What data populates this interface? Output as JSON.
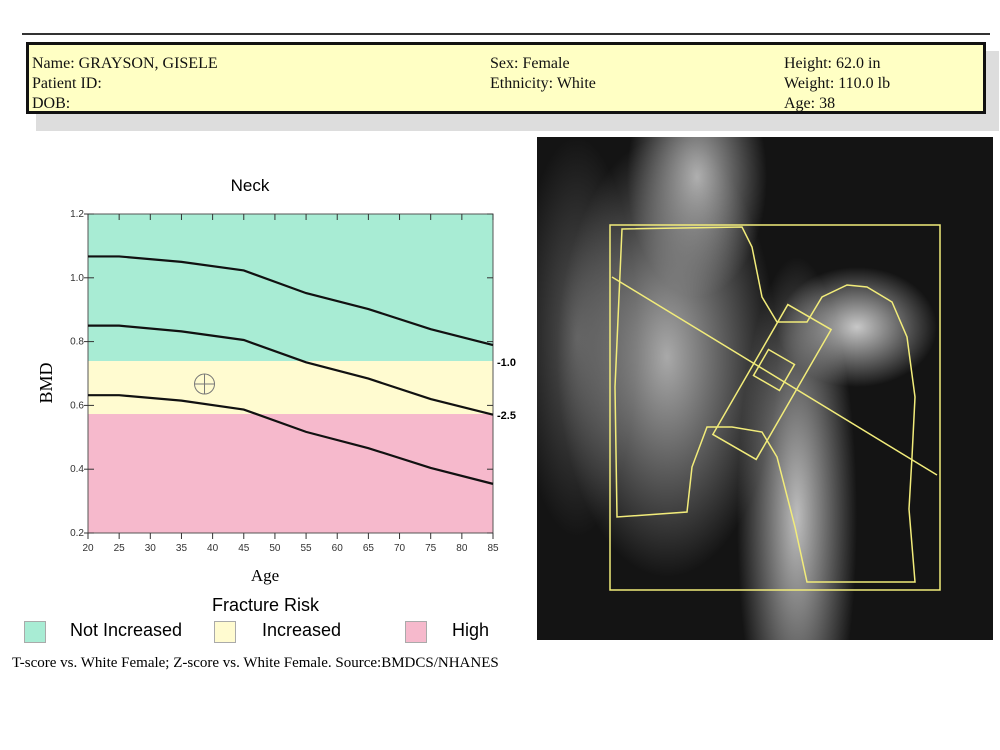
{
  "header": {
    "name": "Name: GRAYSON, GISELE",
    "patient_id": "Patient ID:",
    "dob": "DOB:",
    "sex": "Sex: Female",
    "ethnicity": "Ethnicity: White",
    "height": "Height: 62.0 in",
    "weight": "Weight: 110.0  lb",
    "age": "Age: 38"
  },
  "legend": {
    "title": "Fracture Risk",
    "items": [
      {
        "label": "Not Increased",
        "color": "#a8ecd4"
      },
      {
        "label": "Increased",
        "color": "#fffbd0"
      },
      {
        "label": "High",
        "color": "#f6b9cc"
      }
    ]
  },
  "footer": "T-score vs. White Female; Z-score vs. White Female. Source:BMDCS/NHANES",
  "chart_data": {
    "type": "line",
    "title": "Neck",
    "xlabel": "Age",
    "ylabel": "BMD",
    "xlim": [
      20,
      85
    ],
    "ylim": [
      0.2,
      1.2
    ],
    "xticks": [
      "20",
      "25",
      "30",
      "35",
      "40",
      "45",
      "50",
      "55",
      "60",
      "65",
      "70",
      "75",
      "80",
      "85"
    ],
    "yticks": [
      "0.2",
      "0.4",
      "0.6",
      "0.8",
      "1.0",
      "1.2"
    ],
    "bands": [
      {
        "from": 0.739,
        "to": 1.2,
        "color": "#a8ecd4"
      },
      {
        "from": 0.573,
        "to": 0.739,
        "color": "#fffbd0"
      },
      {
        "from": 0.2,
        "to": 0.573,
        "color": "#f6b9cc"
      }
    ],
    "tscore_labels": [
      {
        "label": "-1.0",
        "bmd": 0.739
      },
      {
        "label": "-2.5",
        "bmd": 0.573
      }
    ],
    "x": [
      20,
      25,
      35,
      45,
      55,
      65,
      75,
      85
    ],
    "series": [
      {
        "values": [
          1.067,
          1.067,
          1.05,
          1.023,
          0.952,
          0.902,
          0.839,
          0.789
        ]
      },
      {
        "values": [
          0.85,
          0.85,
          0.832,
          0.805,
          0.735,
          0.684,
          0.62,
          0.571
        ]
      },
      {
        "values": [
          0.632,
          0.632,
          0.615,
          0.587,
          0.517,
          0.466,
          0.404,
          0.354
        ]
      }
    ],
    "patient_point": {
      "age": 38.7,
      "bmd": 0.667
    }
  }
}
